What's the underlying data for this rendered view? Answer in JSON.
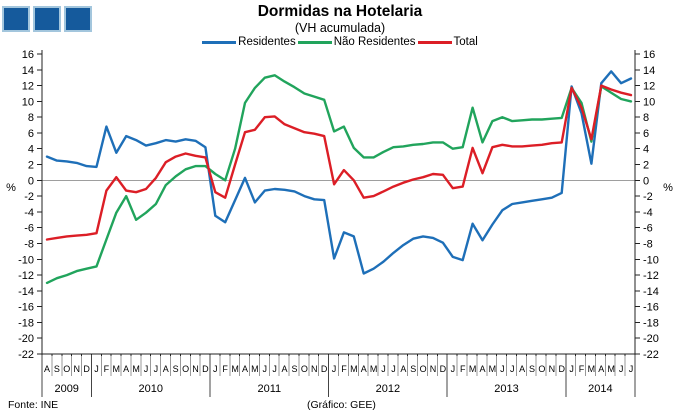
{
  "header": {
    "title": "Dormidas na Hotelaria",
    "subtitle": "(VH acumulada)"
  },
  "legend": [
    {
      "label": "Residentes",
      "color": "#1e6fb8"
    },
    {
      "label": "Não Residentes",
      "color": "#21a45c"
    },
    {
      "label": "Total",
      "color": "#dc1e26"
    }
  ],
  "footer": {
    "source": "Fonte: INE",
    "credit": "(Gráfico: GEE)"
  },
  "logo_colors": {
    "fill": "#155a9c",
    "border": "#a3c6dd"
  },
  "chart_data": {
    "type": "line",
    "title": "Dormidas na Hotelaria",
    "subtitle": "(VH acumulada)",
    "ylabel_left": "%",
    "ylabel_right": "%",
    "ylim": [
      -22,
      16
    ],
    "ytick_step": 2,
    "grid": "zero-line-only",
    "legend_position": "top",
    "zero_line_color": "#9e9e9e",
    "axis_color": "#222222",
    "x_range": "Aug 2009 - Jul 2014",
    "x_months": [
      "A",
      "S",
      "O",
      "N",
      "D",
      "J",
      "F",
      "M",
      "A",
      "M",
      "J",
      "J",
      "A",
      "S",
      "O",
      "N",
      "D",
      "J",
      "F",
      "M",
      "A",
      "M",
      "J",
      "J",
      "A",
      "S",
      "O",
      "N",
      "D",
      "J",
      "F",
      "M",
      "A",
      "M",
      "J",
      "J",
      "A",
      "S",
      "O",
      "N",
      "D",
      "J",
      "F",
      "M",
      "A",
      "M",
      "J",
      "J",
      "A",
      "S",
      "O",
      "N",
      "D",
      "J",
      "F",
      "M",
      "A",
      "M",
      "J",
      "J"
    ],
    "years": [
      {
        "label": "2009",
        "months": 5
      },
      {
        "label": "2010",
        "months": 12
      },
      {
        "label": "2011",
        "months": 12
      },
      {
        "label": "2012",
        "months": 12
      },
      {
        "label": "2013",
        "months": 12
      },
      {
        "label": "2014",
        "months": 7
      }
    ],
    "series": [
      {
        "name": "Residentes",
        "color": "#1e6fb8",
        "values": [
          3.0,
          2.5,
          2.4,
          2.2,
          1.8,
          1.7,
          6.8,
          3.5,
          5.6,
          5.1,
          4.4,
          4.7,
          5.1,
          4.9,
          5.2,
          5.0,
          4.2,
          -4.5,
          -5.3,
          -2.5,
          0.3,
          -2.8,
          -1.3,
          -1.1,
          -1.2,
          -1.4,
          -2.0,
          -2.4,
          -2.5,
          -9.9,
          -6.6,
          -7.1,
          -11.8,
          -11.2,
          -10.3,
          -9.2,
          -8.2,
          -7.4,
          -7.1,
          -7.3,
          -7.9,
          -9.7,
          -10.1,
          -5.5,
          -7.6,
          -5.6,
          -3.8,
          -3.0,
          -2.8,
          -2.6,
          -2.4,
          -2.2,
          -1.6,
          11.9,
          8.5,
          2.1,
          12.3,
          13.8,
          12.3,
          12.9
        ]
      },
      {
        "name": "Não Residentes",
        "color": "#21a45c",
        "values": [
          -13.0,
          -12.4,
          -12.0,
          -11.5,
          -11.2,
          -10.9,
          -7.5,
          -4.1,
          -2.0,
          -5.0,
          -4.1,
          -3.0,
          -0.6,
          0.5,
          1.4,
          1.8,
          1.8,
          0.8,
          0.0,
          4.0,
          9.8,
          11.7,
          13.0,
          13.3,
          12.5,
          11.8,
          11.0,
          10.6,
          10.2,
          6.2,
          6.8,
          4.1,
          2.9,
          2.9,
          3.6,
          4.2,
          4.3,
          4.5,
          4.6,
          4.8,
          4.8,
          4.0,
          4.2,
          9.2,
          4.8,
          7.5,
          8.0,
          7.5,
          7.6,
          7.7,
          7.7,
          7.8,
          7.9,
          11.7,
          9.8,
          4.9,
          11.9,
          11.1,
          10.3,
          10.0
        ]
      },
      {
        "name": "Total",
        "color": "#dc1e26",
        "values": [
          -7.5,
          -7.3,
          -7.1,
          -7.0,
          -6.9,
          -6.7,
          -1.3,
          0.4,
          -1.3,
          -1.5,
          -1.1,
          0.3,
          2.3,
          3.0,
          3.4,
          3.1,
          2.9,
          -1.5,
          -2.2,
          2.0,
          6.1,
          6.4,
          8.0,
          8.1,
          7.1,
          6.6,
          6.1,
          5.9,
          5.6,
          -0.5,
          1.3,
          0.0,
          -2.2,
          -2.0,
          -1.4,
          -0.8,
          -0.3,
          0.1,
          0.4,
          0.8,
          0.7,
          -1.0,
          -0.8,
          4.1,
          0.9,
          4.2,
          4.5,
          4.3,
          4.3,
          4.4,
          4.5,
          4.7,
          4.8,
          11.7,
          9.2,
          5.2,
          12.0,
          11.5,
          11.1,
          10.8
        ]
      }
    ]
  }
}
